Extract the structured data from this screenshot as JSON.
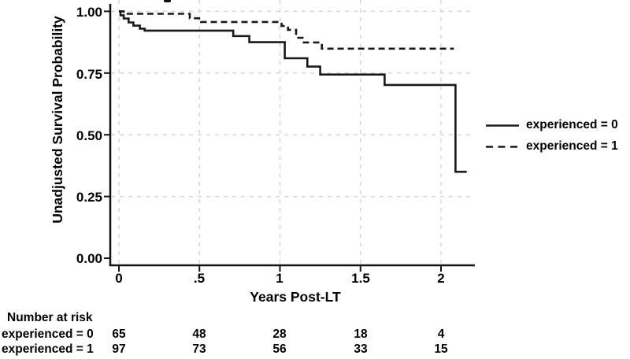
{
  "figure": {
    "background": "#ffffff"
  },
  "axes": {
    "y": {
      "label": "Unadjusted Survival Probability",
      "ticks": [
        {
          "label": "1.00",
          "value": 1.0
        },
        {
          "label": "0.75",
          "value": 0.75
        },
        {
          "label": "0.50",
          "value": 0.5
        },
        {
          "label": "0.25",
          "value": 0.25
        },
        {
          "label": "0.00",
          "value": 0.0
        }
      ]
    },
    "x": {
      "label": "Years Post-LT",
      "ticks": [
        {
          "label": "0",
          "value": 0
        },
        {
          "label": ".5",
          "value": 0.5
        },
        {
          "label": "1",
          "value": 1
        },
        {
          "label": "1.5",
          "value": 1.5
        },
        {
          "label": "2",
          "value": 2
        }
      ]
    }
  },
  "legend": {
    "entries": [
      {
        "label": "experienced = 0",
        "linestyle": "solid"
      },
      {
        "label": "experienced = 1",
        "linestyle": "dashed"
      }
    ]
  },
  "risk_table": {
    "title": "Number at risk",
    "rows": [
      {
        "label": "experienced = 0",
        "counts": [
          "65",
          "48",
          "28",
          "18",
          "4"
        ]
      },
      {
        "label": "experienced = 1",
        "counts": [
          "97",
          "73",
          "56",
          "33",
          "15"
        ]
      }
    ]
  },
  "chart_data": {
    "type": "line",
    "subtype": "kaplan_meier_step",
    "title": "",
    "xlabel": "Years Post-LT",
    "ylabel": "Unadjusted Survival Probability",
    "xlim": [
      0,
      2.2
    ],
    "ylim": [
      0.0,
      1.0
    ],
    "x_ticks": [
      0,
      0.5,
      1,
      1.5,
      2
    ],
    "y_ticks": [
      0.0,
      0.25,
      0.5,
      0.75,
      1.0
    ],
    "grid": "dashed light-gray gridlines at all x ticks and at y = 0.25/0.50/0.75/1.00",
    "legend_position": "outside right, middle",
    "colors": {
      "curve": "#1a1a1a",
      "grid": "#d4d4d4",
      "text": "#000000"
    },
    "series": [
      {
        "name": "experienced = 0",
        "linestyle": "solid",
        "end_time": 2.16,
        "steps": [
          [
            0,
            1.0
          ],
          [
            0.01,
            0.984
          ],
          [
            0.03,
            0.971
          ],
          [
            0.06,
            0.955
          ],
          [
            0.09,
            0.942
          ],
          [
            0.13,
            0.93
          ],
          [
            0.16,
            0.922
          ],
          [
            0.71,
            0.9
          ],
          [
            0.81,
            0.875
          ],
          [
            1.03,
            0.81
          ],
          [
            1.17,
            0.776
          ],
          [
            1.25,
            0.744
          ],
          [
            1.65,
            0.702
          ],
          [
            2.09,
            0.35
          ]
        ]
      },
      {
        "name": "experienced = 1",
        "linestyle": "dashed",
        "end_time": 2.08,
        "steps": [
          [
            0,
            1.0
          ],
          [
            0.03,
            0.99
          ],
          [
            0.44,
            0.972
          ],
          [
            0.51,
            0.957
          ],
          [
            1.01,
            0.941
          ],
          [
            1.05,
            0.925
          ],
          [
            1.1,
            0.893
          ],
          [
            1.14,
            0.874
          ],
          [
            1.26,
            0.849
          ]
        ]
      }
    ],
    "number_at_risk": {
      "times": [
        0,
        0.5,
        1,
        1.5,
        2
      ],
      "experienced_0": [
        65,
        48,
        28,
        18,
        4
      ],
      "experienced_1": [
        97,
        73,
        56,
        33,
        15
      ]
    }
  }
}
